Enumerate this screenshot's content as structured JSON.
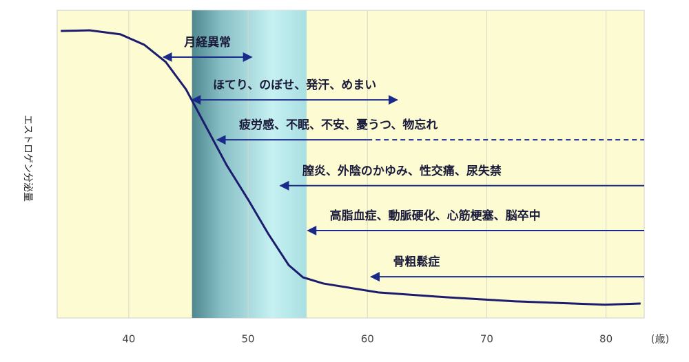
{
  "chart_data": {
    "type": "line",
    "y_label": "エストロゲン分泌量",
    "x_unit": "(歳)",
    "x": [
      34.3,
      36.7,
      39.3,
      41.3,
      43.1,
      44.8,
      46.5,
      48.2,
      50.0,
      51.7,
      53.4,
      54.6,
      56.3,
      60.9,
      66.7,
      72.4,
      79.9,
      82.9
    ],
    "values": [
      93.3,
      93.5,
      92.2,
      88.8,
      83.2,
      74.3,
      62.0,
      49.7,
      38.5,
      27.3,
      17.2,
      13.2,
      11.2,
      8.3,
      6.7,
      5.4,
      4.3,
      4.7
    ],
    "color": "#1c1c6e",
    "xlim": [
      34,
      83.2
    ],
    "xticks": [
      40,
      50,
      60,
      70,
      80
    ],
    "ylim": [
      0,
      100
    ],
    "grid": true,
    "band": {
      "from": 45.3,
      "to": 54.9
    },
    "annotations": [
      {
        "text": "月経異常",
        "x_from": 42.9,
        "x_to": 50.3,
        "y": 84.8,
        "heads": "both"
      },
      {
        "text": "ほてり、のぼせ、発汗、めまい",
        "x_from": 45.3,
        "x_to": 62.5,
        "y": 70.9,
        "heads": "both"
      },
      {
        "text": "疲労感、不眠、不安、憂うつ、物忘れ",
        "x_from": 47.4,
        "x_to": 83.2,
        "y": 57.9,
        "heads": "left",
        "dashed_from": 60
      },
      {
        "text": "膣炎、外陰のかゆみ、性交痛、尿失禁",
        "x_from": 52.7,
        "x_to": 83.2,
        "y": 43.0,
        "heads": "left"
      },
      {
        "text": "高脂血症、動脈硬化、心筋梗塞、脳卒中",
        "x_from": 55.0,
        "x_to": 83.2,
        "y": 28.4,
        "heads": "left"
      },
      {
        "text": "骨粗鬆症",
        "x_from": 60.3,
        "x_to": 83.2,
        "y": 13.4,
        "heads": "left"
      }
    ]
  }
}
